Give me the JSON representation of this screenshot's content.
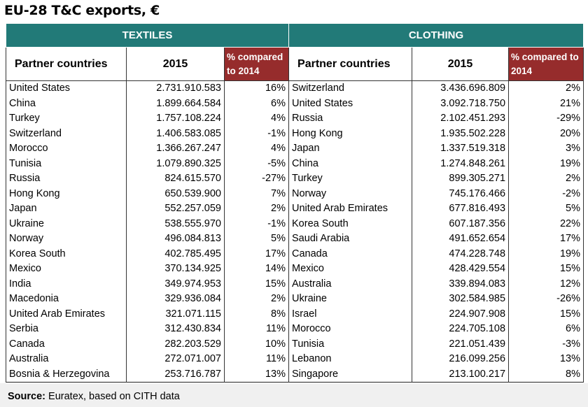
{
  "title": "EU-28 T&C exports, €",
  "sections": [
    {
      "title": "TEXTILES",
      "headers": [
        "Partner countries",
        "2015",
        "% compared to 2014"
      ],
      "rows": [
        [
          "United States",
          "2.731.910.583",
          "16%"
        ],
        [
          "China",
          "1.899.664.584",
          "6%"
        ],
        [
          "Turkey",
          "1.757.108.224",
          "4%"
        ],
        [
          "Switzerland",
          "1.406.583.085",
          "-1%"
        ],
        [
          "Morocco",
          "1.366.267.247",
          "4%"
        ],
        [
          "Tunisia",
          "1.079.890.325",
          "-5%"
        ],
        [
          "Russia",
          "824.615.570",
          "-27%"
        ],
        [
          "Hong Kong",
          "650.539.900",
          "7%"
        ],
        [
          "Japan",
          "552.257.059",
          "2%"
        ],
        [
          "Ukraine",
          "538.555.970",
          "-1%"
        ],
        [
          "Norway",
          "496.084.813",
          "5%"
        ],
        [
          "Korea South",
          "402.785.495",
          "17%"
        ],
        [
          "Mexico",
          "370.134.925",
          "14%"
        ],
        [
          "India",
          "349.974.953",
          "15%"
        ],
        [
          "Macedonia",
          "329.936.084",
          "2%"
        ],
        [
          "United Arab Emirates",
          "321.071.115",
          "8%"
        ],
        [
          "Serbia",
          "312.430.834",
          "11%"
        ],
        [
          "Canada",
          "282.203.529",
          "10%"
        ],
        [
          "Australia",
          "272.071.007",
          "11%"
        ],
        [
          "Bosnia & Herzegovina",
          "253.716.787",
          "13%"
        ]
      ]
    },
    {
      "title": "CLOTHING",
      "headers": [
        "Partner countries",
        "2015",
        "% compared to 2014"
      ],
      "rows": [
        [
          "Switzerland",
          "3.436.696.809",
          "2%"
        ],
        [
          "United States",
          "3.092.718.750",
          "21%"
        ],
        [
          "Russia",
          "2.102.451.293",
          "-29%"
        ],
        [
          "Hong Kong",
          "1.935.502.228",
          "20%"
        ],
        [
          "Japan",
          "1.337.519.318",
          "3%"
        ],
        [
          "China",
          "1.274.848.261",
          "19%"
        ],
        [
          "Turkey",
          "899.305.271",
          "2%"
        ],
        [
          "Norway",
          "745.176.466",
          "-2%"
        ],
        [
          "United Arab Emirates",
          "677.816.493",
          "5%"
        ],
        [
          "Korea South",
          "607.187.356",
          "22%"
        ],
        [
          "Saudi Arabia",
          "491.652.654",
          "17%"
        ],
        [
          "Canada",
          "474.228.748",
          "19%"
        ],
        [
          "Mexico",
          "428.429.554",
          "15%"
        ],
        [
          "Australia",
          "339.894.083",
          "12%"
        ],
        [
          "Ukraine",
          "302.584.985",
          "-26%"
        ],
        [
          "Israel",
          "224.907.908",
          "15%"
        ],
        [
          "Morocco",
          "224.705.108",
          "6%"
        ],
        [
          "Tunisia",
          "221.051.439",
          "-3%"
        ],
        [
          "Lebanon",
          "216.099.256",
          "13%"
        ],
        [
          "Singapore",
          "213.100.217",
          "8%"
        ]
      ]
    }
  ],
  "source": {
    "label": "Source:",
    "text": "Euratex, based on CITH data"
  }
}
